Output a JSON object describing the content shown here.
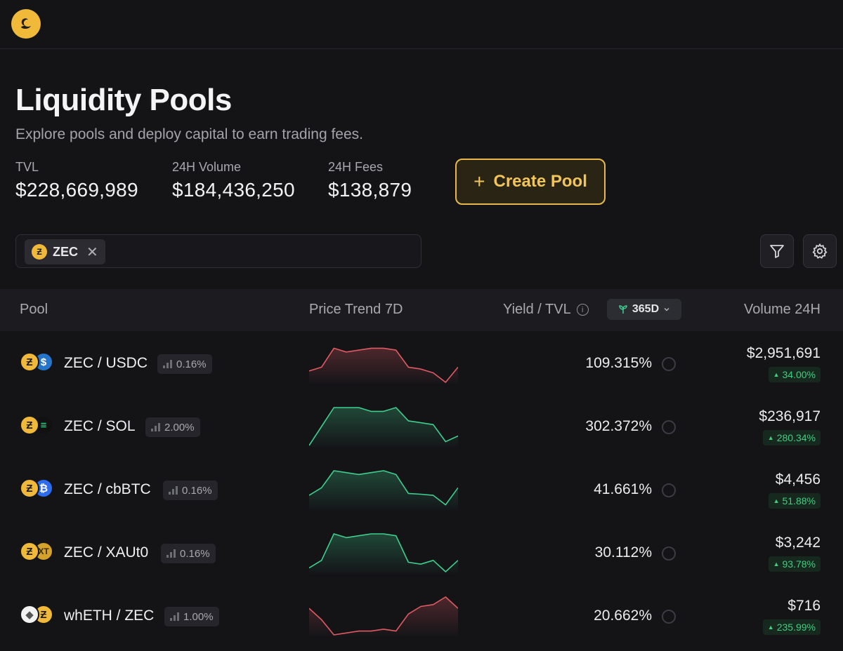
{
  "app": {
    "logo_icon": "swan-logo-icon",
    "accent": "#f0b93a"
  },
  "hero": {
    "title": "Liquidity Pools",
    "subtitle": "Explore pools and deploy capital to earn trading fees."
  },
  "stats": [
    {
      "label": "TVL",
      "value": "$228,669,989"
    },
    {
      "label": "24H Volume",
      "value": "$184,436,250"
    },
    {
      "label": "24H Fees",
      "value": "$138,879"
    }
  ],
  "create_button": {
    "icon": "+",
    "label": "Create Pool"
  },
  "search": {
    "chip_label": "ZEC",
    "chip_close": "✕"
  },
  "table": {
    "headers": {
      "pool": "Pool",
      "trend": "Price Trend 7D",
      "yield": "Yield / TVL",
      "period": "365D",
      "volume": "Volume 24H"
    },
    "rows": [
      {
        "pair": "ZEC / USDC",
        "tokens": [
          "zec",
          "usdc"
        ],
        "fee": "0.16%",
        "yield": "109.315%",
        "volume": "$2,951,691",
        "change": "34.00%",
        "trend_color": "#e05a64",
        "trend": [
          0.7,
          0.6,
          0.1,
          0.2,
          0.15,
          0.1,
          0.1,
          0.15,
          0.6,
          0.65,
          0.75,
          1.0,
          0.6
        ]
      },
      {
        "pair": "ZEC / SOL",
        "tokens": [
          "zec",
          "sol"
        ],
        "fee": "2.00%",
        "yield": "302.372%",
        "volume": "$236,917",
        "change": "280.34%",
        "trend_color": "#3ecf8e",
        "trend": [
          1.0,
          0.5,
          0.0,
          0.0,
          0.0,
          0.1,
          0.1,
          0.0,
          0.35,
          0.4,
          0.45,
          0.9,
          0.75
        ]
      },
      {
        "pair": "ZEC / cbBTC",
        "tokens": [
          "zec",
          "btc"
        ],
        "fee": "0.16%",
        "yield": "41.661%",
        "volume": "$4,456",
        "change": "51.88%",
        "trend_color": "#3ecf8e",
        "trend": [
          0.65,
          0.45,
          0.0,
          0.05,
          0.1,
          0.05,
          0.0,
          0.1,
          0.6,
          0.62,
          0.65,
          0.9,
          0.45
        ]
      },
      {
        "pair": "ZEC / XAUt0",
        "tokens": [
          "zec",
          "xaut"
        ],
        "fee": "0.16%",
        "yield": "30.112%",
        "volume": "$3,242",
        "change": "93.78%",
        "trend_color": "#3ecf8e",
        "trend": [
          0.9,
          0.7,
          0.0,
          0.1,
          0.05,
          0.0,
          0.0,
          0.05,
          0.75,
          0.8,
          0.7,
          1.0,
          0.7
        ]
      },
      {
        "pair": "whETH / ZEC",
        "tokens": [
          "eth",
          "zec"
        ],
        "fee": "1.00%",
        "yield": "20.662%",
        "volume": "$716",
        "change": "235.99%",
        "trend_color": "#e05a64",
        "trend": [
          0.3,
          0.6,
          1.0,
          0.95,
          0.9,
          0.9,
          0.85,
          0.9,
          0.45,
          0.25,
          0.2,
          0.0,
          0.3
        ]
      }
    ]
  }
}
